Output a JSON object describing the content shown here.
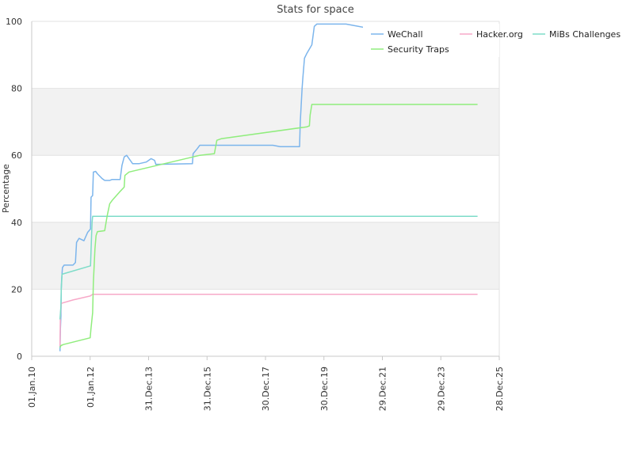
{
  "chart_data": {
    "type": "line",
    "title": "Stats for space",
    "xlabel": "",
    "ylabel": "Percentage",
    "ylim": [
      0,
      100
    ],
    "y_ticks": [
      0,
      20,
      40,
      60,
      80,
      100
    ],
    "x_tick_labels": [
      "01.Jan.10",
      "01.Jan.12",
      "31.Dec.13",
      "31.Dec.15",
      "30.Dec.17",
      "30.Dec.19",
      "29.Dec.21",
      "29.Dec.23",
      "28.Dec.25"
    ],
    "x_tick_dates": [
      "2010-01-01",
      "2012-01-01",
      "2013-12-31",
      "2015-12-31",
      "2017-12-30",
      "2019-12-30",
      "2021-12-29",
      "2023-12-29",
      "2025-12-28"
    ],
    "xlim": [
      "2010-01-01",
      "2025-12-28"
    ],
    "grid": "horizontal alternating bands",
    "legend_position": "top-right",
    "series": [
      {
        "name": "WeChall",
        "color": "#7cb5ec",
        "points": [
          [
            "2010-12-20",
            1.5
          ],
          [
            "2010-12-25",
            8
          ],
          [
            "2011-01-01",
            12
          ],
          [
            "2011-01-05",
            20
          ],
          [
            "2011-01-10",
            23
          ],
          [
            "2011-01-20",
            26.5
          ],
          [
            "2011-02-10",
            27.2
          ],
          [
            "2011-06-01",
            27.2
          ],
          [
            "2011-07-01",
            28
          ],
          [
            "2011-07-15",
            34
          ],
          [
            "2011-08-15",
            35.2
          ],
          [
            "2011-10-15",
            34.5
          ],
          [
            "2011-12-01",
            37
          ],
          [
            "2012-01-05",
            38
          ],
          [
            "2012-01-12",
            47.5
          ],
          [
            "2012-02-01",
            48
          ],
          [
            "2012-02-10",
            55
          ],
          [
            "2012-03-10",
            55.2
          ],
          [
            "2012-04-01",
            54.5
          ],
          [
            "2012-06-01",
            53
          ],
          [
            "2012-07-01",
            52.5
          ],
          [
            "2012-09-01",
            52.5
          ],
          [
            "2012-10-01",
            52.8
          ],
          [
            "2013-01-10",
            52.8
          ],
          [
            "2013-02-01",
            57
          ],
          [
            "2013-03-01",
            59.5
          ],
          [
            "2013-04-01",
            60
          ],
          [
            "2013-06-15",
            57.5
          ],
          [
            "2013-09-01",
            57.5
          ],
          [
            "2013-12-01",
            58
          ],
          [
            "2014-02-01",
            59
          ],
          [
            "2014-03-15",
            58.5
          ],
          [
            "2014-04-01",
            57.3
          ],
          [
            "2015-07-01",
            57.5
          ],
          [
            "2015-07-10",
            60.5
          ],
          [
            "2015-09-01",
            62
          ],
          [
            "2015-10-01",
            63
          ],
          [
            "2016-01-01",
            63
          ],
          [
            "2018-04-01",
            63
          ],
          [
            "2018-07-01",
            62.6
          ],
          [
            "2019-03-01",
            62.6
          ],
          [
            "2019-03-10",
            70
          ],
          [
            "2019-04-01",
            80
          ],
          [
            "2019-04-10",
            83
          ],
          [
            "2019-05-01",
            89
          ],
          [
            "2019-06-01",
            90.5
          ],
          [
            "2019-08-01",
            93
          ],
          [
            "2019-09-01",
            98.5
          ],
          [
            "2019-10-01",
            99.2
          ],
          [
            "2020-10-01",
            99.2
          ],
          [
            "2022-06-01",
            96.5
          ],
          [
            "2022-07-01",
            97.5
          ],
          [
            "2023-01-01",
            96.5
          ],
          [
            "2023-03-01",
            96
          ]
        ]
      },
      {
        "name": "Hacker.org",
        "color": "#f7a8c8",
        "points": [
          [
            "2010-12-20",
            3
          ],
          [
            "2010-12-25",
            12
          ],
          [
            "2011-01-05",
            15.8
          ],
          [
            "2011-06-01",
            16.8
          ],
          [
            "2012-01-01",
            18
          ],
          [
            "2012-02-01",
            18.5
          ],
          [
            "2025-04-01",
            18.5
          ]
        ]
      },
      {
        "name": "MiBs Challenges",
        "color": "#7ddcc8",
        "points": [
          [
            "2010-12-20",
            11
          ],
          [
            "2011-01-01",
            15
          ],
          [
            "2011-01-05",
            20
          ],
          [
            "2011-01-15",
            24.5
          ],
          [
            "2012-01-05",
            27
          ],
          [
            "2012-01-20",
            37
          ],
          [
            "2012-01-25",
            40
          ],
          [
            "2012-02-01",
            41.8
          ],
          [
            "2025-04-01",
            41.8
          ]
        ]
      },
      {
        "name": "Security Traps",
        "color": "#90ed7d",
        "points": [
          [
            "2010-12-20",
            2.5
          ],
          [
            "2011-01-01",
            3.2
          ],
          [
            "2011-02-01",
            3.5
          ],
          [
            "2012-01-01",
            5.5
          ],
          [
            "2012-01-10",
            8
          ],
          [
            "2012-02-01",
            13
          ],
          [
            "2012-02-10",
            22
          ],
          [
            "2012-02-20",
            27
          ],
          [
            "2012-03-01",
            32
          ],
          [
            "2012-03-15",
            36
          ],
          [
            "2012-04-01",
            37.2
          ],
          [
            "2012-07-01",
            37.5
          ],
          [
            "2012-08-01",
            42
          ],
          [
            "2012-09-01",
            45.5
          ],
          [
            "2012-10-01",
            46.5
          ],
          [
            "2013-01-01",
            49
          ],
          [
            "2013-03-01",
            50.5
          ],
          [
            "2013-03-10",
            54
          ],
          [
            "2013-05-01",
            55
          ],
          [
            "2015-10-01",
            60
          ],
          [
            "2016-04-01",
            60.5
          ],
          [
            "2016-05-01",
            64.5
          ],
          [
            "2016-07-01",
            65
          ],
          [
            "2019-06-01",
            68.5
          ],
          [
            "2019-07-01",
            68.8
          ],
          [
            "2019-07-10",
            72
          ],
          [
            "2019-08-01",
            75.2
          ],
          [
            "2025-04-01",
            75.2
          ]
        ]
      }
    ]
  }
}
